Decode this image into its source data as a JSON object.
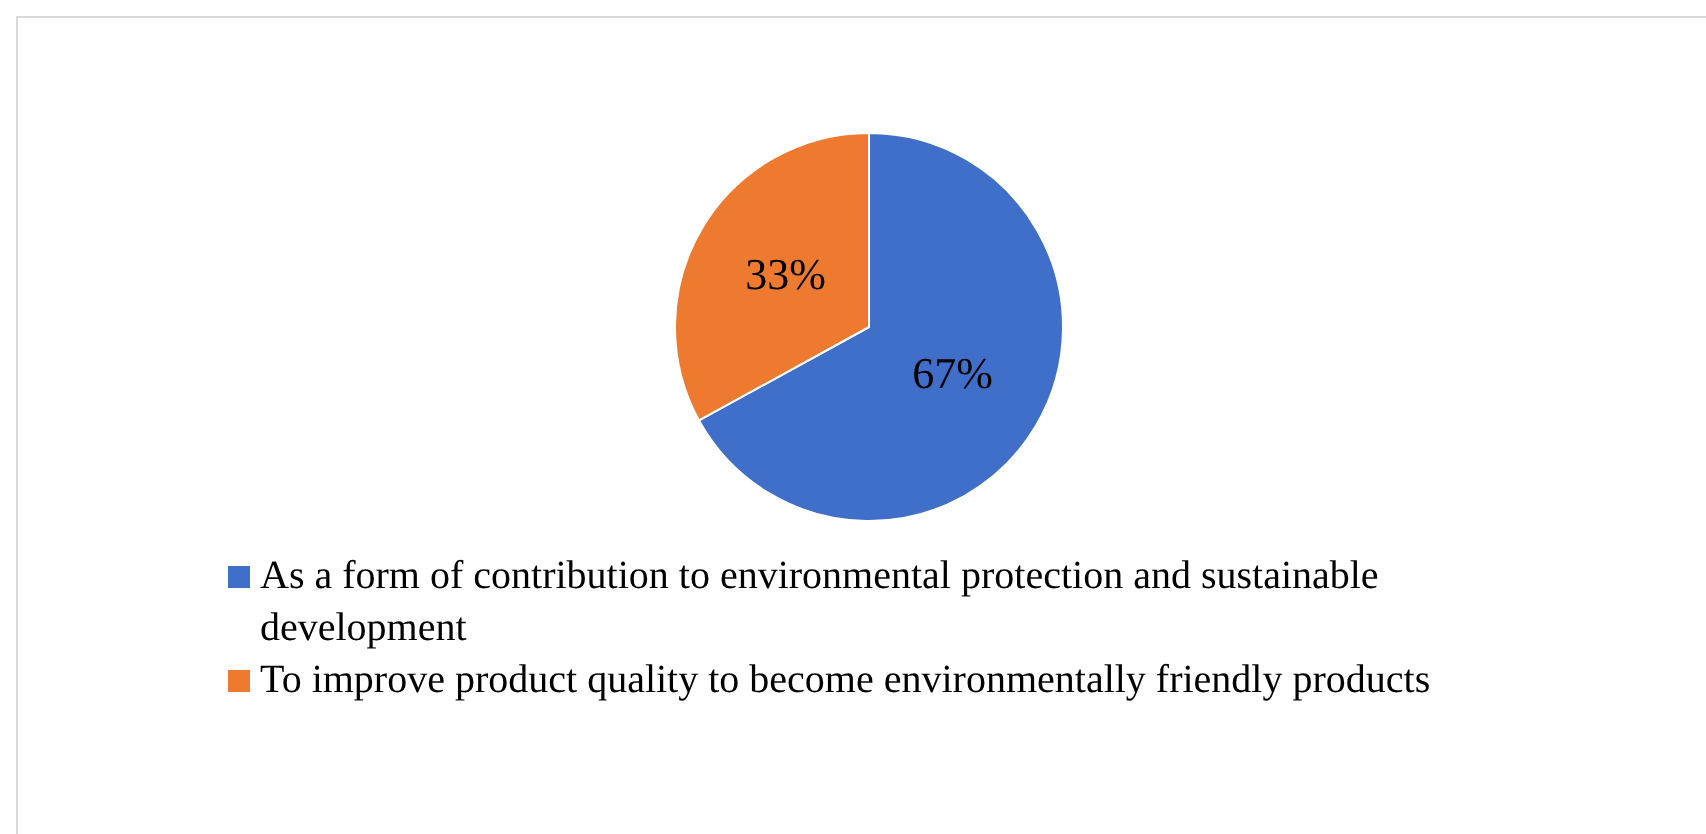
{
  "chart_data": {
    "type": "pie",
    "categories": [
      "As a form of contribution to environmental protection and sustainable development",
      "To improve product quality to become environmentally friendly products"
    ],
    "values": [
      67,
      33
    ],
    "colors": [
      "#3f6fc9",
      "#ee7a2f"
    ],
    "value_labels": [
      "67%",
      "33%"
    ],
    "legend": "bottom"
  }
}
